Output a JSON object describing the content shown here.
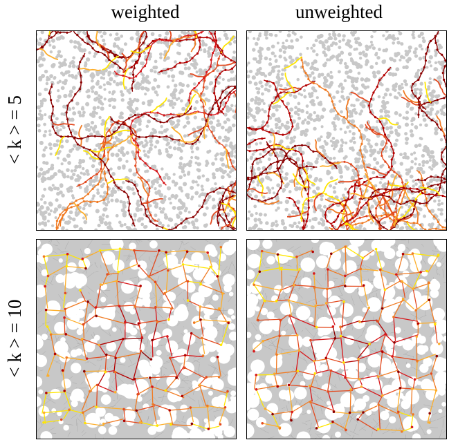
{
  "columns": [
    "weighted",
    "unweighted"
  ],
  "rows": [
    "< k > = 5",
    "< k > = 10"
  ]
}
